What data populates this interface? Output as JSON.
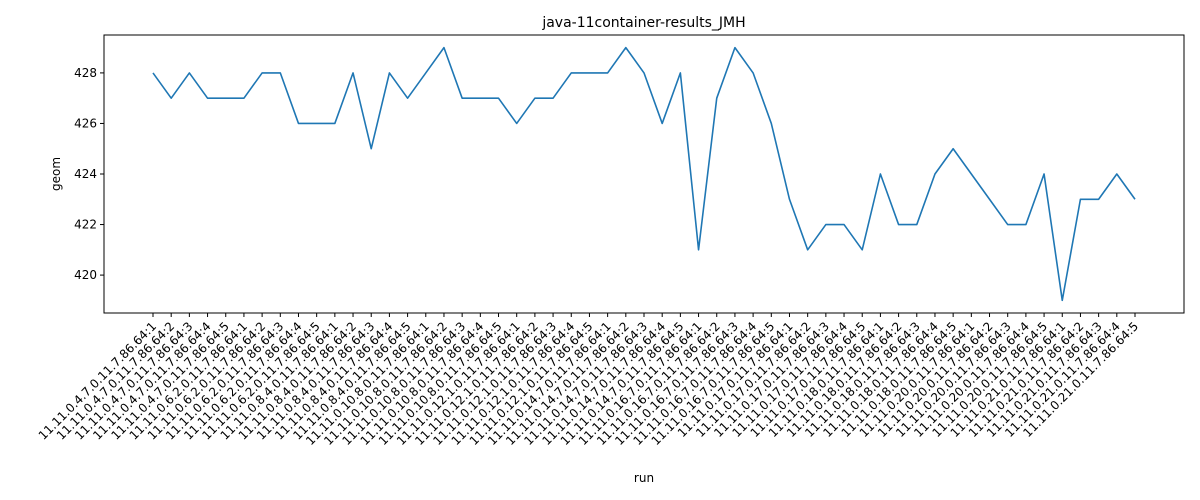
{
  "chart_data": {
    "type": "line",
    "title": "java-11container-results_JMH",
    "xlabel": "run",
    "ylabel": "geom",
    "ylim": [
      418.5,
      429.5
    ],
    "yticks": [
      420,
      422,
      424,
      426,
      428
    ],
    "grid": false,
    "series": [
      {
        "color": "#1f77b4",
        "x": [
          "11.11.0.4.7.0.11.7.86.64:1",
          "11.11.0.4.7.0.11.7.86.64:2",
          "11.11.0.4.7.0.11.7.86.64:3",
          "11.11.0.4.7.0.11.7.86.64:4",
          "11.11.0.4.7.0.11.7.86.64:5",
          "11.11.0.6.2.0.11.7.86.64:1",
          "11.11.0.6.2.0.11.7.86.64:2",
          "11.11.0.6.2.0.11.7.86.64:3",
          "11.11.0.6.2.0.11.7.86.64:4",
          "11.11.0.6.2.0.11.7.86.64:5",
          "11.11.0.8.4.0.11.7.86.64:1",
          "11.11.0.8.4.0.11.7.86.64:2",
          "11.11.0.8.4.0.11.7.86.64:3",
          "11.11.0.8.4.0.11.7.86.64:4",
          "11.11.0.8.4.0.11.7.86.64:5",
          "11.11.0.10.8.0.11.7.86.64:1",
          "11.11.0.10.8.0.11.7.86.64:2",
          "11.11.0.10.8.0.11.7.86.64:3",
          "11.11.0.10.8.0.11.7.86.64:4",
          "11.11.0.10.8.0.11.7.86.64:5",
          "11.11.0.12.1.0.11.7.86.64:1",
          "11.11.0.12.1.0.11.7.86.64:2",
          "11.11.0.12.1.0.11.7.86.64:3",
          "11.11.0.12.1.0.11.7.86.64:4",
          "11.11.0.12.1.0.11.7.86.64:5",
          "11.11.0.14.7.0.11.7.86.64:1",
          "11.11.0.14.7.0.11.7.86.64:2",
          "11.11.0.14.7.0.11.7.86.64:3",
          "11.11.0.14.7.0.11.7.86.64:4",
          "11.11.0.14.7.0.11.7.86.64:5",
          "11.11.0.16.7.0.11.7.86.64:1",
          "11.11.0.16.7.0.11.7.86.64:2",
          "11.11.0.16.7.0.11.7.86.64:3",
          "11.11.0.16.7.0.11.7.86.64:4",
          "11.11.0.16.7.0.11.7.86.64:5",
          "11.11.0.17.0.11.7.86.64:1",
          "11.11.0.17.0.11.7.86.64:2",
          "11.11.0.17.0.11.7.86.64:3",
          "11.11.0.17.0.11.7.86.64:4",
          "11.11.0.17.0.11.7.86.64:5",
          "11.11.0.18.0.11.7.86.64:1",
          "11.11.0.18.0.11.7.86.64:2",
          "11.11.0.18.0.11.7.86.64:3",
          "11.11.0.18.0.11.7.86.64:4",
          "11.11.0.18.0.11.7.86.64:5",
          "11.11.0.20.0.11.7.86.64:1",
          "11.11.0.20.0.11.7.86.64:2",
          "11.11.0.20.0.11.7.86.64:3",
          "11.11.0.20.0.11.7.86.64:4",
          "11.11.0.20.0.11.7.86.64:5",
          "11.11.0.21.0.11.7.86.64:1",
          "11.11.0.21.0.11.7.86.64:2",
          "11.11.0.21.0.11.7.86.64:3",
          "11.11.0.21.0.11.7.86.64:4",
          "11.11.0.21.0.11.7.86.64:5"
        ],
        "values": [
          428,
          427,
          428,
          427,
          427,
          427,
          428,
          428,
          426,
          426,
          426,
          428,
          425,
          428,
          427,
          428,
          429,
          427,
          427,
          427,
          426,
          427,
          427,
          428,
          428,
          428,
          429,
          428,
          426,
          428,
          421,
          427,
          429,
          428,
          426,
          423,
          421,
          422,
          422,
          421,
          424,
          422,
          422,
          424,
          425,
          424,
          423,
          422,
          422,
          424,
          419,
          423,
          423,
          424,
          423
        ]
      }
    ]
  }
}
